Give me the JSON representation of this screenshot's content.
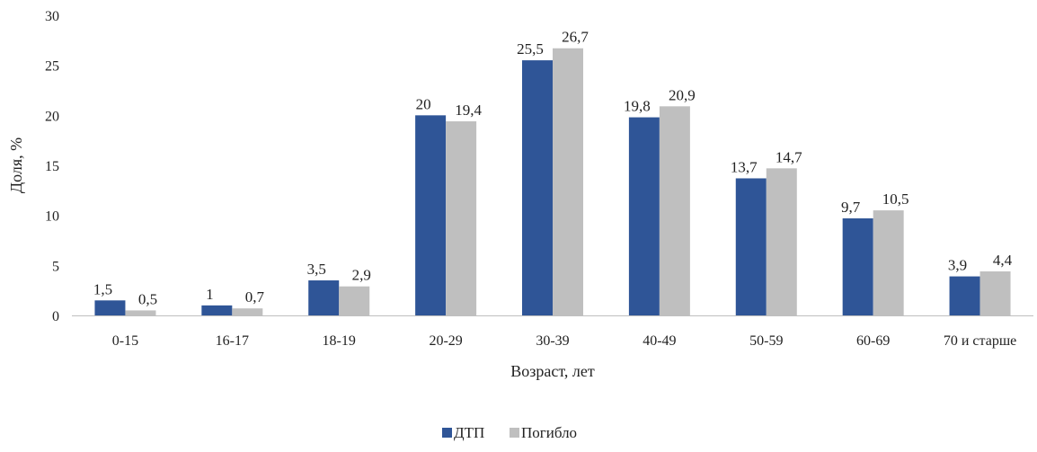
{
  "chart_data": {
    "type": "bar",
    "categories": [
      "0-15",
      "16-17",
      "18-19",
      "20-29",
      "30-39",
      "40-49",
      "50-59",
      "60-69",
      "70 и старше"
    ],
    "series": [
      {
        "name": "ДТП",
        "color": "#2F5597",
        "values": [
          1.5,
          1,
          3.5,
          20,
          25.5,
          19.8,
          13.7,
          9.7,
          3.9
        ],
        "labels": [
          "1,5",
          "1",
          "3,5",
          "20",
          "25,5",
          "19,8",
          "13,7",
          "9,7",
          "3,9"
        ]
      },
      {
        "name": "Погибло",
        "color": "#BFBFBF",
        "values": [
          0.5,
          0.7,
          2.9,
          19.4,
          26.7,
          20.9,
          14.7,
          10.5,
          4.4
        ],
        "labels": [
          "0,5",
          "0,7",
          "2,9",
          "19,4",
          "26,7",
          "20,9",
          "14,7",
          "10,5",
          "4,4"
        ]
      }
    ],
    "xlabel": "Возраст, лет",
    "ylabel": "Доля, %",
    "ylim": [
      0,
      30
    ],
    "yticks": [
      "0",
      "5",
      "10",
      "15",
      "20",
      "25",
      "30"
    ],
    "grid": false,
    "legend_position": "bottom-center",
    "axis_color": "#BFBFBF"
  }
}
